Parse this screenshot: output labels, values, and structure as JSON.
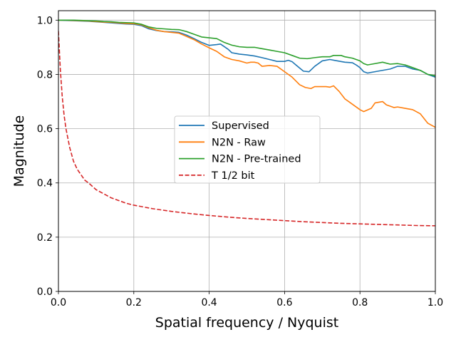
{
  "chart_data": {
    "type": "line",
    "title": "",
    "xlabel": "Spatial frequency / Nyquist",
    "ylabel": "Magnitude",
    "xlim": [
      0.0,
      1.0
    ],
    "ylim": [
      0.0,
      1.035
    ],
    "grid": true,
    "legend_position": "center-right",
    "xticks": [
      0.0,
      0.2,
      0.4,
      0.6,
      0.8,
      1.0
    ],
    "xtick_labels": [
      "0.0",
      "0.2",
      "0.4",
      "0.6",
      "0.8",
      "1.0"
    ],
    "yticks": [
      0.0,
      0.2,
      0.4,
      0.6,
      0.8,
      1.0
    ],
    "ytick_labels": [
      "0.0",
      "0.2",
      "0.4",
      "0.6",
      "0.8",
      "1.0"
    ],
    "series": [
      {
        "name": "Supervised",
        "color": "#1f77b4",
        "dash": "solid",
        "x": [
          0.0,
          0.02,
          0.04,
          0.06,
          0.08,
          0.1,
          0.12,
          0.14,
          0.16,
          0.18,
          0.2,
          0.22,
          0.24,
          0.26,
          0.28,
          0.3,
          0.32,
          0.34,
          0.36,
          0.38,
          0.4,
          0.42,
          0.43,
          0.45,
          0.46,
          0.48,
          0.5,
          0.52,
          0.54,
          0.56,
          0.58,
          0.6,
          0.61,
          0.62,
          0.63,
          0.65,
          0.665,
          0.68,
          0.7,
          0.72,
          0.74,
          0.76,
          0.78,
          0.79,
          0.8,
          0.81,
          0.82,
          0.84,
          0.86,
          0.88,
          0.9,
          0.92,
          0.94,
          0.96,
          0.98,
          1.0
        ],
        "y": [
          1.0,
          0.999,
          0.998,
          0.997,
          0.996,
          0.994,
          0.992,
          0.99,
          0.988,
          0.986,
          0.985,
          0.98,
          0.968,
          0.962,
          0.958,
          0.957,
          0.955,
          0.945,
          0.932,
          0.918,
          0.907,
          0.91,
          0.912,
          0.893,
          0.88,
          0.875,
          0.872,
          0.868,
          0.862,
          0.855,
          0.848,
          0.848,
          0.852,
          0.847,
          0.835,
          0.812,
          0.81,
          0.83,
          0.85,
          0.855,
          0.85,
          0.845,
          0.843,
          0.835,
          0.825,
          0.81,
          0.805,
          0.81,
          0.815,
          0.82,
          0.83,
          0.83,
          0.82,
          0.815,
          0.8,
          0.79
        ]
      },
      {
        "name": "N2N - Raw",
        "color": "#ff7f0e",
        "dash": "solid",
        "x": [
          0.0,
          0.02,
          0.04,
          0.06,
          0.08,
          0.1,
          0.12,
          0.14,
          0.16,
          0.18,
          0.2,
          0.22,
          0.24,
          0.26,
          0.28,
          0.3,
          0.32,
          0.34,
          0.36,
          0.38,
          0.4,
          0.42,
          0.44,
          0.46,
          0.48,
          0.5,
          0.51,
          0.52,
          0.53,
          0.54,
          0.56,
          0.58,
          0.6,
          0.62,
          0.64,
          0.655,
          0.67,
          0.68,
          0.7,
          0.71,
          0.72,
          0.73,
          0.745,
          0.76,
          0.78,
          0.8,
          0.81,
          0.83,
          0.84,
          0.86,
          0.87,
          0.89,
          0.9,
          0.92,
          0.94,
          0.96,
          0.98,
          1.0
        ],
        "y": [
          1.0,
          1.0,
          0.999,
          0.998,
          0.997,
          0.995,
          0.993,
          0.992,
          0.99,
          0.988,
          0.987,
          0.983,
          0.972,
          0.963,
          0.958,
          0.955,
          0.952,
          0.94,
          0.928,
          0.912,
          0.898,
          0.885,
          0.865,
          0.855,
          0.85,
          0.842,
          0.845,
          0.845,
          0.842,
          0.83,
          0.833,
          0.83,
          0.81,
          0.79,
          0.762,
          0.752,
          0.748,
          0.755,
          0.755,
          0.755,
          0.753,
          0.758,
          0.737,
          0.71,
          0.69,
          0.67,
          0.663,
          0.675,
          0.695,
          0.7,
          0.688,
          0.678,
          0.68,
          0.675,
          0.67,
          0.655,
          0.62,
          0.605
        ]
      },
      {
        "name": "N2N - Pre-trained",
        "color": "#2ca02c",
        "dash": "solid",
        "x": [
          0.0,
          0.02,
          0.04,
          0.06,
          0.08,
          0.1,
          0.12,
          0.14,
          0.16,
          0.18,
          0.2,
          0.22,
          0.24,
          0.26,
          0.28,
          0.3,
          0.32,
          0.34,
          0.36,
          0.38,
          0.4,
          0.42,
          0.44,
          0.46,
          0.48,
          0.5,
          0.52,
          0.54,
          0.56,
          0.58,
          0.6,
          0.62,
          0.64,
          0.66,
          0.68,
          0.7,
          0.72,
          0.73,
          0.75,
          0.76,
          0.78,
          0.79,
          0.8,
          0.81,
          0.82,
          0.84,
          0.86,
          0.88,
          0.9,
          0.92,
          0.94,
          0.96,
          0.98,
          1.0
        ],
        "y": [
          1.0,
          1.0,
          1.0,
          0.999,
          0.998,
          0.997,
          0.995,
          0.994,
          0.992,
          0.991,
          0.99,
          0.985,
          0.975,
          0.97,
          0.968,
          0.966,
          0.965,
          0.958,
          0.948,
          0.938,
          0.935,
          0.932,
          0.918,
          0.908,
          0.902,
          0.9,
          0.9,
          0.895,
          0.89,
          0.885,
          0.88,
          0.87,
          0.86,
          0.858,
          0.862,
          0.865,
          0.865,
          0.87,
          0.87,
          0.865,
          0.86,
          0.855,
          0.85,
          0.84,
          0.835,
          0.84,
          0.845,
          0.838,
          0.84,
          0.835,
          0.825,
          0.815,
          0.8,
          0.795
        ]
      },
      {
        "name": "T 1/2 bit",
        "color": "#d62728",
        "dash": "dashed",
        "x": [
          0.0,
          0.005,
          0.01,
          0.015,
          0.02,
          0.03,
          0.04,
          0.05,
          0.06,
          0.07,
          0.08,
          0.1,
          0.12,
          0.14,
          0.16,
          0.18,
          0.2,
          0.25,
          0.3,
          0.35,
          0.4,
          0.45,
          0.5,
          0.55,
          0.6,
          0.65,
          0.7,
          0.75,
          0.8,
          0.85,
          0.9,
          0.95,
          1.0
        ],
        "y": [
          0.96,
          0.82,
          0.72,
          0.65,
          0.6,
          0.53,
          0.48,
          0.45,
          0.43,
          0.41,
          0.4,
          0.375,
          0.36,
          0.345,
          0.335,
          0.325,
          0.318,
          0.305,
          0.295,
          0.287,
          0.28,
          0.274,
          0.269,
          0.265,
          0.261,
          0.257,
          0.254,
          0.251,
          0.249,
          0.247,
          0.245,
          0.243,
          0.242
        ]
      }
    ]
  }
}
